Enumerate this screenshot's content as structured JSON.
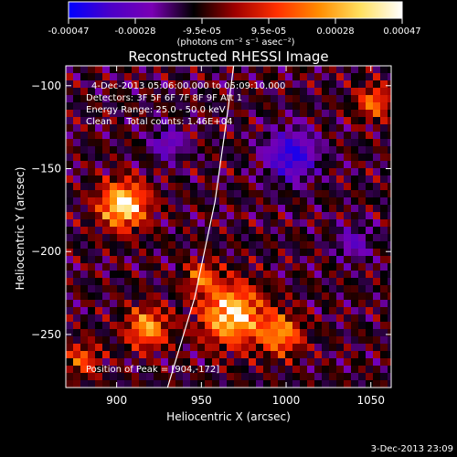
{
  "colorbar": {
    "ticks": [
      "-0.00047",
      "-0.00028",
      "-9.5e-05",
      "9.5e-05",
      "0.00028",
      "0.00047"
    ],
    "unit_label": "(photons cm⁻² s⁻¹ asec⁻²)",
    "colors": [
      "#0000ff",
      "#4b00c8",
      "#7a00b4",
      "#000000",
      "#a00000",
      "#ff3000",
      "#ff8c00",
      "#ffe060",
      "#ffffff"
    ]
  },
  "chart_data": {
    "type": "heatmap",
    "title": "Reconstructed RHESSI Image",
    "xlabel": "Heliocentric X (arcsec)",
    "ylabel": "Heliocentric Y (arcsec)",
    "xlim": [
      870,
      1062
    ],
    "ylim": [
      -282,
      -88
    ],
    "x_ticks": [
      900,
      950,
      1000,
      1050
    ],
    "y_ticks": [
      -100,
      -150,
      -200,
      -250
    ],
    "x_tick_labels": [
      "900",
      "950",
      "1000",
      "1050"
    ],
    "y_tick_labels": [
      "−100",
      "−150",
      "−200",
      "−250"
    ],
    "value_range": [
      -0.00047,
      0.00047
    ],
    "bright_sources": [
      {
        "x": 904,
        "y": -172,
        "r": 14,
        "peak": 1.0
      },
      {
        "x": 968,
        "y": -238,
        "r": 18,
        "peak": 0.95
      },
      {
        "x": 997,
        "y": -250,
        "r": 12,
        "peak": 0.7
      },
      {
        "x": 918,
        "y": -246,
        "r": 12,
        "peak": 0.75
      },
      {
        "x": 950,
        "y": -215,
        "r": 9,
        "peak": 0.55
      },
      {
        "x": 1052,
        "y": -110,
        "r": 10,
        "peak": 0.6
      },
      {
        "x": 880,
        "y": -265,
        "r": 10,
        "peak": 0.5
      }
    ],
    "negative_sources": [
      {
        "x": 1003,
        "y": -142,
        "r": 14,
        "peak": -0.8
      },
      {
        "x": 930,
        "y": -135,
        "r": 10,
        "peak": -0.45
      },
      {
        "x": 1040,
        "y": -195,
        "r": 10,
        "peak": -0.4
      }
    ],
    "limb_curve": [
      [
        930,
        -282
      ],
      [
        946,
        -228
      ],
      [
        958,
        -170
      ],
      [
        966,
        -112
      ],
      [
        969,
        -88
      ]
    ],
    "peak_position": [
      904,
      -172
    ],
    "annotations": {
      "time_range": "4-Dec-2013 05:06:00.000 to 05:09:10.000",
      "detectors": "Detectors: 3F 5F 6F 7F 8F 9F  Att 1",
      "energy_range": "Energy Range: 25.0 - 50.0 keV",
      "method_counts": "Clean     Total counts: 1.46E+04",
      "peak_label": "Position of Peak = [904,-172]"
    }
  },
  "footer": {
    "timestamp": "3-Dec-2013 23:09"
  }
}
